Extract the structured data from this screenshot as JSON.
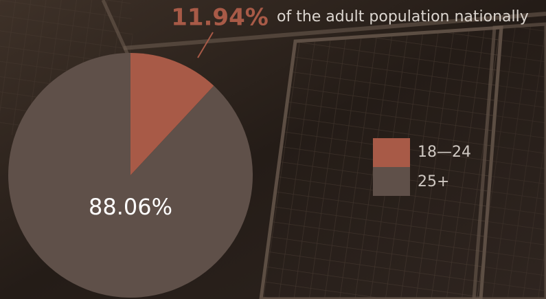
{
  "chart_data": {
    "type": "pie",
    "annotation": "of the adult population nationally",
    "categories": [
      "18—24",
      "25+"
    ],
    "values": [
      11.94,
      88.06
    ],
    "value_labels": [
      "11.94%",
      "88.06%"
    ],
    "colors": [
      "#a85a47",
      "#5f5049"
    ]
  }
}
